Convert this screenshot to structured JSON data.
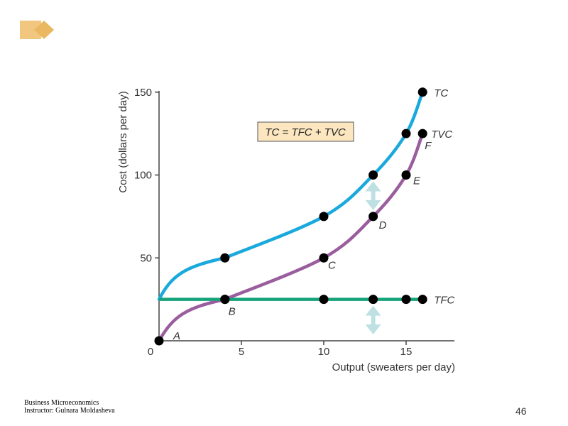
{
  "footer": {
    "line1": "Business Microeconomics",
    "line2": "Instructor: Gulnara Moldasheva"
  },
  "page_number": "46",
  "colors": {
    "tc": "#19a9dd",
    "tvc": "#9a5d9e",
    "tfc": "#16a37a",
    "arrow": "#bfe0e3",
    "equation_bg": "#fbe6bf",
    "decoration": "#f1c77f"
  },
  "chart_data": {
    "type": "line",
    "xlabel": "Output (sweaters per day)",
    "ylabel": "Cost (dollars per day)",
    "xlim": [
      0,
      18
    ],
    "ylim": [
      0,
      150
    ],
    "x_ticks": [
      0,
      5,
      10,
      15
    ],
    "y_ticks": [
      50,
      100,
      150
    ],
    "x_tick_labels": [
      "0",
      "5",
      "10",
      "15"
    ],
    "y_tick_labels": [
      "50",
      "100",
      "150"
    ],
    "equation": "TC = TFC + TVC",
    "series": [
      {
        "name": "TC",
        "points": [
          [
            0,
            25
          ],
          [
            4,
            50
          ],
          [
            10,
            75
          ],
          [
            13,
            100
          ],
          [
            15,
            125
          ],
          [
            16,
            150
          ]
        ]
      },
      {
        "name": "TVC",
        "points": [
          [
            0,
            0
          ],
          [
            4,
            25
          ],
          [
            10,
            50
          ],
          [
            13,
            75
          ],
          [
            15,
            100
          ],
          [
            16,
            125
          ]
        ]
      },
      {
        "name": "TFC",
        "points": [
          [
            0,
            25
          ],
          [
            4,
            25
          ],
          [
            10,
            25
          ],
          [
            13,
            25
          ],
          [
            15,
            25
          ],
          [
            16,
            25
          ]
        ]
      }
    ],
    "point_labels": [
      {
        "text": "A",
        "x": 0,
        "y": 0
      },
      {
        "text": "B",
        "x": 4,
        "y": 25
      },
      {
        "text": "C",
        "x": 10,
        "y": 50
      },
      {
        "text": "D",
        "x": 13,
        "y": 75
      },
      {
        "text": "E",
        "x": 15,
        "y": 100
      },
      {
        "text": "F",
        "x": 16,
        "y": 125
      }
    ],
    "annotations": [
      {
        "type": "double-arrow",
        "x": 13,
        "from": 75,
        "to": 100
      },
      {
        "type": "double-arrow",
        "x": 13,
        "from": 0,
        "to": 25
      }
    ]
  }
}
